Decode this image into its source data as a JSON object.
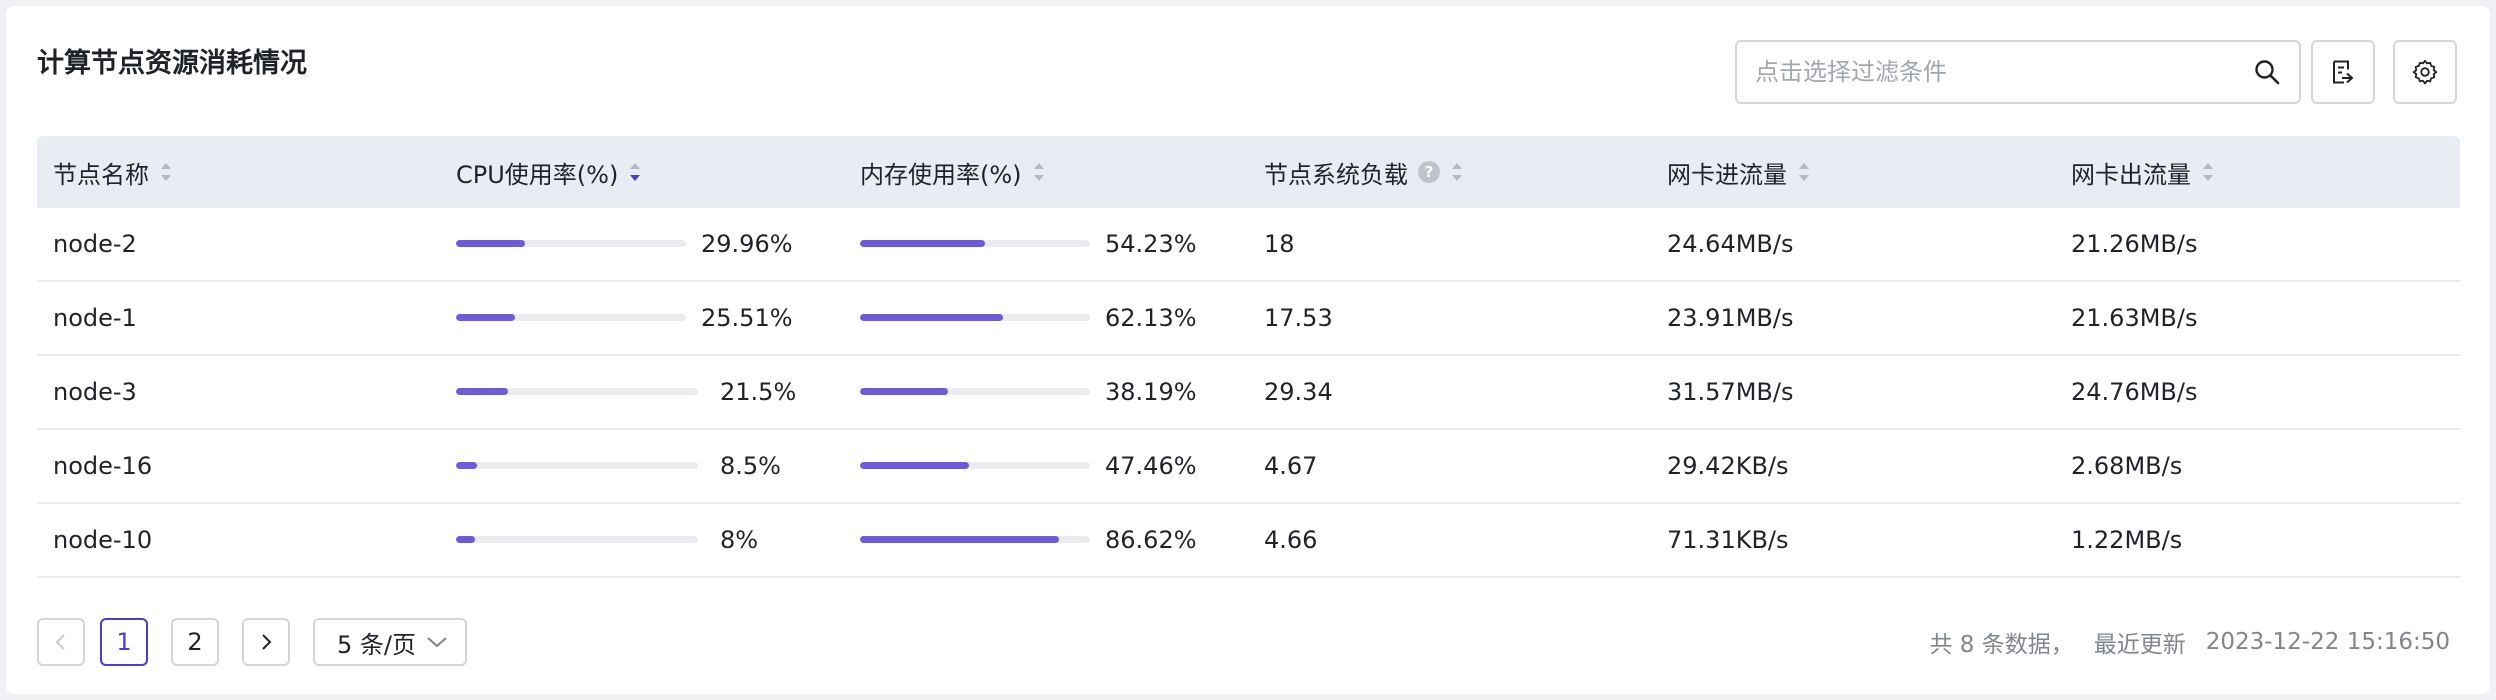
{
  "page_title": "计算节点资源消耗情况",
  "search": {
    "placeholder": "点击选择过滤条件"
  },
  "table": {
    "columns": [
      {
        "key": "node",
        "label": "节点名称",
        "sort": "none"
      },
      {
        "key": "cpu",
        "label": "CPU使用率(%)",
        "sort": "descending"
      },
      {
        "key": "mem",
        "label": "内存使用率(%)",
        "sort": "none"
      },
      {
        "key": "load",
        "label": "节点系统负载",
        "sort": "none",
        "help_icon": "?"
      },
      {
        "key": "net_in",
        "label": "网卡进流量",
        "sort": "none"
      },
      {
        "key": "net_out",
        "label": "网卡出流量",
        "sort": "none"
      }
    ],
    "rows": [
      {
        "node": "node-2",
        "cpu": "29.96%",
        "cpu_value": 0.2996,
        "mem": "54.23%",
        "mem_value": 0.5423,
        "load": "18",
        "net_in": "24.64MB/s",
        "net_out": "21.26MB/s"
      },
      {
        "node": "node-1",
        "cpu": "25.51%",
        "cpu_value": 0.2551,
        "mem": "62.13%",
        "mem_value": 0.6213,
        "load": "17.53",
        "net_in": "23.91MB/s",
        "net_out": "21.63MB/s"
      },
      {
        "node": "node-3",
        "cpu": "21.5%",
        "cpu_value": 0.215,
        "mem": "38.19%",
        "mem_value": 0.3819,
        "load": "29.34",
        "net_in": "31.57MB/s",
        "net_out": "24.76MB/s"
      },
      {
        "node": "node-16",
        "cpu": "8.5%",
        "cpu_value": 0.085,
        "mem": "47.46%",
        "mem_value": 0.4746,
        "load": "4.67",
        "net_in": "29.42KB/s",
        "net_out": "2.68MB/s"
      },
      {
        "node": "node-10",
        "cpu": "8%",
        "cpu_value": 0.08,
        "mem": "86.62%",
        "mem_value": 0.8662,
        "load": "4.66",
        "net_in": "71.31KB/s",
        "net_out": "1.22MB/s"
      }
    ]
  },
  "pagination": {
    "pages": [
      "1",
      "2"
    ],
    "current_page": "1",
    "page_size": "5 条/页"
  },
  "footer": {
    "total": "共 8 条数据，",
    "updated_label": "最近更新",
    "updated_time": "2023-12-22 15:16:50"
  },
  "colors": {
    "accent": "#6f5ad9",
    "active_page": "#4a3ccc",
    "header_bg": "#e9ecf2",
    "bar_track": "#e9ebf0"
  },
  "icons": {
    "search": "search-icon",
    "export": "export-icon",
    "settings": "gear-icon",
    "prev": "chevron-left-icon",
    "next": "chevron-right-icon",
    "dropdown": "chevron-down-icon"
  }
}
